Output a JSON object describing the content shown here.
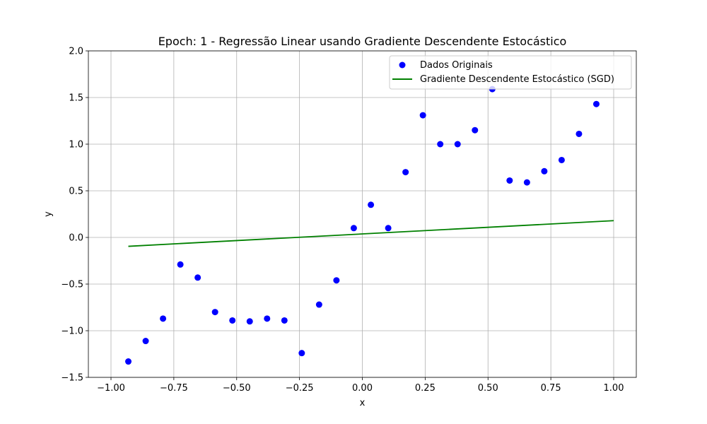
{
  "chart_data": {
    "type": "scatter",
    "title": "Epoch: 1 - Regressão Linear usando Gradiente Descendente Estocástico",
    "xlabel": "x",
    "ylabel": "y",
    "xlim": [
      -1.09,
      1.09
    ],
    "ylim": [
      -1.5,
      2.0
    ],
    "x_ticks": [
      -1.0,
      -0.75,
      -0.5,
      -0.25,
      0.0,
      0.25,
      0.5,
      0.75,
      1.0
    ],
    "x_tick_labels": [
      "−1.00",
      "−0.75",
      "−0.50",
      "−0.25",
      "0.00",
      "0.25",
      "0.50",
      "0.75",
      "1.00"
    ],
    "y_ticks": [
      -1.5,
      -1.0,
      -0.5,
      0.0,
      0.5,
      1.0,
      1.5,
      2.0
    ],
    "y_tick_labels": [
      "−1.5",
      "−1.0",
      "−0.5",
      "0.0",
      "0.5",
      "1.0",
      "1.5",
      "2.0"
    ],
    "grid": true,
    "legend_position": "top-right",
    "series": [
      {
        "name": "Dados Originais",
        "kind": "scatter",
        "color": "#0000ff",
        "x": [
          -0.931,
          -0.862,
          -0.793,
          -0.724,
          -0.655,
          -0.586,
          -0.517,
          -0.448,
          -0.379,
          -0.31,
          -0.241,
          -0.172,
          -0.103,
          -0.034,
          0.034,
          0.103,
          0.172,
          0.241,
          0.31,
          0.379,
          0.448,
          0.517,
          0.586,
          0.655,
          0.724,
          0.793,
          0.862,
          0.931
        ],
        "y": [
          -1.33,
          -1.11,
          -0.87,
          -0.29,
          -0.43,
          -0.8,
          -0.89,
          -0.9,
          -0.87,
          -0.89,
          -1.24,
          -0.72,
          -0.46,
          0.1,
          0.35,
          0.1,
          0.7,
          1.31,
          1.0,
          1.0,
          1.15,
          1.59,
          0.61,
          0.59,
          0.71,
          0.83,
          1.11,
          1.43
        ]
      },
      {
        "name": "Gradiente Descendente Estocástico (SGD)",
        "kind": "line",
        "color": "#008000",
        "x": [
          -0.931,
          1.0
        ],
        "y": [
          -0.095,
          0.18
        ]
      }
    ]
  }
}
